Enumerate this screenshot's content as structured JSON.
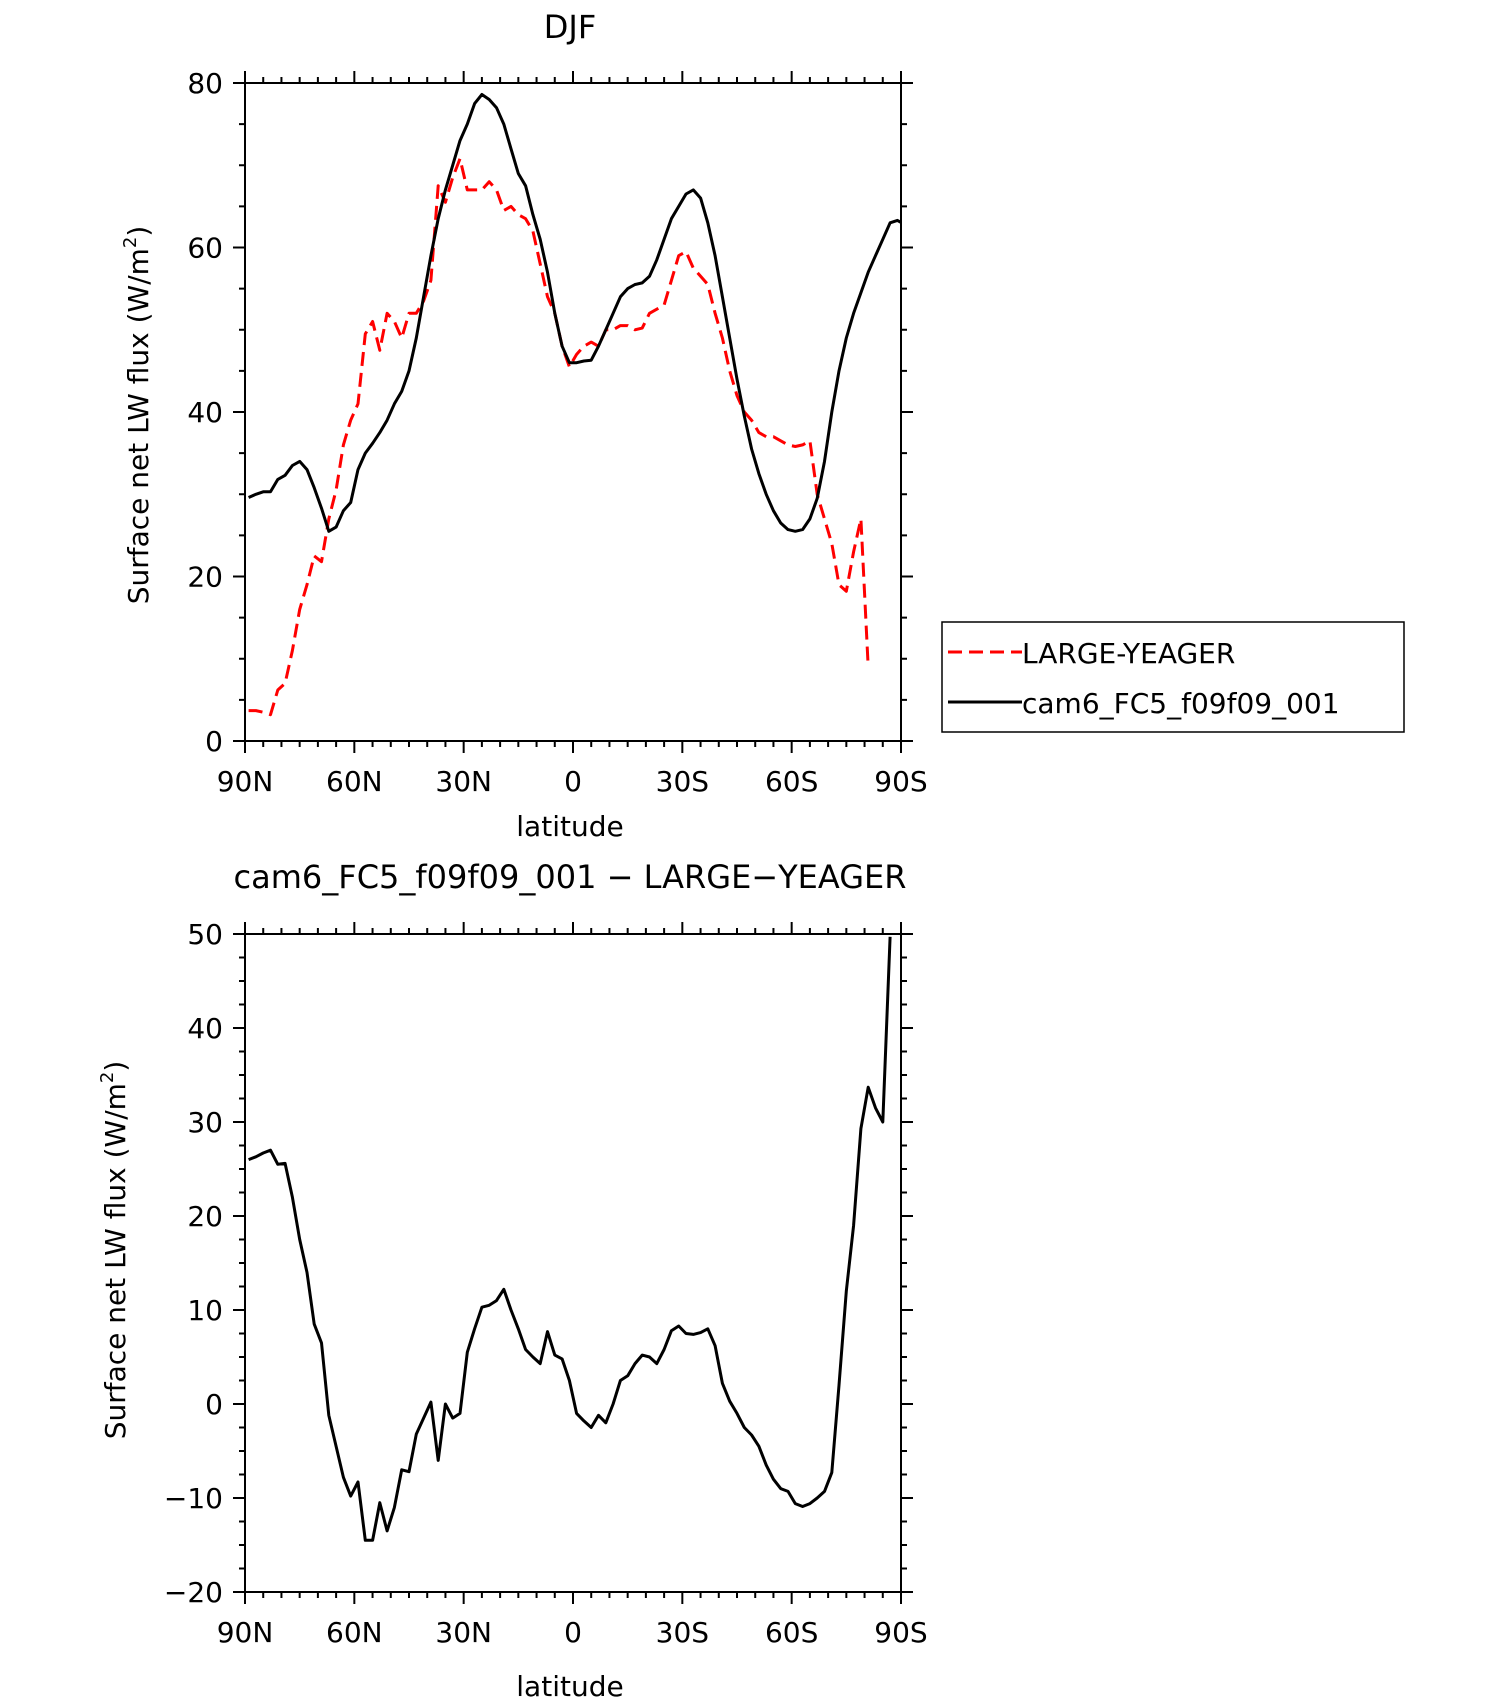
{
  "chart_data": [
    {
      "type": "line",
      "title": "DJF",
      "xlabel": "latitude",
      "ylabel": "Surface net LW flux (W/m²)",
      "ylabel_main": "Surface net LW flux (W/m",
      "ylabel_sup": "2",
      "ylabel_end": ")",
      "xlim": [
        90,
        -90
      ],
      "ylim": [
        0,
        80
      ],
      "xticks": [
        90,
        60,
        30,
        0,
        -30,
        -60,
        -90
      ],
      "xtick_labels": [
        "90N",
        "60N",
        "30N",
        "0",
        "30S",
        "60S",
        "90S"
      ],
      "yticks": [
        0,
        20,
        40,
        60,
        80
      ],
      "ytick_labels": [
        "0",
        "20",
        "40",
        "60",
        "80"
      ],
      "legend_position": "right",
      "series": [
        {
          "name": "LARGE-YEAGER",
          "color": "#ff0000",
          "dash": "dashed",
          "points": [
            [
              89,
              3.7
            ],
            [
              87,
              3.7
            ],
            [
              85,
              3.5
            ],
            [
              83,
              3.2
            ],
            [
              81,
              6.2
            ],
            [
              79,
              7
            ],
            [
              77,
              11
            ],
            [
              75,
              16
            ],
            [
              73,
              19
            ],
            [
              71,
              22.5
            ],
            [
              69,
              21.8
            ],
            [
              67,
              27
            ],
            [
              65,
              30.5
            ],
            [
              63,
              36
            ],
            [
              61,
              39
            ],
            [
              59,
              41
            ],
            [
              57,
              49.5
            ],
            [
              55,
              51
            ],
            [
              53,
              47.5
            ],
            [
              51,
              52
            ],
            [
              49,
              51
            ],
            [
              47,
              49
            ],
            [
              45,
              52
            ],
            [
              43,
              52
            ],
            [
              41,
              53.5
            ],
            [
              39,
              56
            ],
            [
              37,
              67.5
            ],
            [
              35,
              65.5
            ],
            [
              33,
              68.5
            ],
            [
              31,
              70.8
            ],
            [
              29,
              67
            ],
            [
              27,
              67
            ],
            [
              25,
              67
            ],
            [
              23,
              68
            ],
            [
              21,
              67
            ],
            [
              19,
              64.5
            ],
            [
              17,
              65
            ],
            [
              15,
              64
            ],
            [
              13,
              63.5
            ],
            [
              11,
              62
            ],
            [
              9,
              58
            ],
            [
              7,
              54
            ],
            [
              5,
              52
            ],
            [
              3,
              48
            ],
            [
              1,
              45.5
            ],
            [
              -1,
              47
            ],
            [
              -3,
              48
            ],
            [
              -5,
              48.5
            ],
            [
              -7,
              48
            ],
            [
              -9,
              50
            ],
            [
              -11,
              50
            ],
            [
              -13,
              50.5
            ],
            [
              -15,
              50.5
            ],
            [
              -17,
              50
            ],
            [
              -19,
              50.2
            ],
            [
              -21,
              52
            ],
            [
              -23,
              52.5
            ],
            [
              -25,
              53
            ],
            [
              -27,
              56
            ],
            [
              -29,
              59
            ],
            [
              -31,
              59.5
            ],
            [
              -33,
              57.5
            ],
            [
              -35,
              56.5
            ],
            [
              -37,
              55.5
            ],
            [
              -39,
              52
            ],
            [
              -41,
              49
            ],
            [
              -43,
              45
            ],
            [
              -45,
              42
            ],
            [
              -47,
              40
            ],
            [
              -49,
              39
            ],
            [
              -51,
              37.5
            ],
            [
              -53,
              37
            ],
            [
              -55,
              37
            ],
            [
              -57,
              36.5
            ],
            [
              -59,
              36
            ],
            [
              -61,
              35.8
            ],
            [
              -63,
              36
            ],
            [
              -65,
              36.5
            ],
            [
              -67,
              30
            ],
            [
              -69,
              27
            ],
            [
              -71,
              24
            ],
            [
              -73,
              19
            ],
            [
              -75,
              18.2
            ],
            [
              -77,
              23
            ],
            [
              -79,
              27
            ],
            [
              -81,
              9
            ]
          ]
        },
        {
          "name": "cam6_FC5_f09f09_001",
          "color": "#000000",
          "dash": "solid",
          "points": [
            [
              89,
              29.6
            ],
            [
              87,
              30
            ],
            [
              85,
              30.3
            ],
            [
              83,
              30.3
            ],
            [
              81,
              31.8
            ],
            [
              79,
              32.3
            ],
            [
              77,
              33.5
            ],
            [
              75,
              34
            ],
            [
              73,
              33
            ],
            [
              71,
              30.8
            ],
            [
              69,
              28.3
            ],
            [
              67,
              25.5
            ],
            [
              65,
              26
            ],
            [
              63,
              28
            ],
            [
              61,
              29
            ],
            [
              59,
              33
            ],
            [
              57,
              35
            ],
            [
              55,
              36.2
            ],
            [
              53,
              37.5
            ],
            [
              51,
              39
            ],
            [
              49,
              41
            ],
            [
              47,
              42.5
            ],
            [
              45,
              45
            ],
            [
              43,
              49
            ],
            [
              41,
              54
            ],
            [
              39,
              59
            ],
            [
              37,
              63.5
            ],
            [
              35,
              67
            ],
            [
              33,
              70
            ],
            [
              31,
              73
            ],
            [
              29,
              75
            ],
            [
              27,
              77.5
            ],
            [
              25,
              78.6
            ],
            [
              23,
              78
            ],
            [
              21,
              77
            ],
            [
              19,
              75
            ],
            [
              17,
              72
            ],
            [
              15,
              69
            ],
            [
              13,
              67.5
            ],
            [
              11,
              64
            ],
            [
              9,
              61
            ],
            [
              7,
              57
            ],
            [
              5,
              52
            ],
            [
              3,
              48
            ],
            [
              1,
              46
            ],
            [
              -1,
              46
            ],
            [
              -3,
              46.2
            ],
            [
              -5,
              46.3
            ],
            [
              -7,
              48
            ],
            [
              -9,
              50
            ],
            [
              -11,
              52
            ],
            [
              -13,
              54
            ],
            [
              -15,
              55
            ],
            [
              -17,
              55.5
            ],
            [
              -19,
              55.7
            ],
            [
              -21,
              56.5
            ],
            [
              -23,
              58.5
            ],
            [
              -25,
              61
            ],
            [
              -27,
              63.5
            ],
            [
              -29,
              65
            ],
            [
              -31,
              66.5
            ],
            [
              -33,
              67
            ],
            [
              -35,
              66
            ],
            [
              -37,
              63
            ],
            [
              -39,
              59
            ],
            [
              -41,
              54
            ],
            [
              -43,
              49
            ],
            [
              -45,
              44
            ],
            [
              -47,
              39.5
            ],
            [
              -49,
              35.5
            ],
            [
              -51,
              32.5
            ],
            [
              -53,
              30
            ],
            [
              -55,
              28
            ],
            [
              -57,
              26.5
            ],
            [
              -59,
              25.7
            ],
            [
              -61,
              25.5
            ],
            [
              -63,
              25.7
            ],
            [
              -65,
              27
            ],
            [
              -67,
              29.5
            ],
            [
              -69,
              34
            ],
            [
              -71,
              40
            ],
            [
              -73,
              45
            ],
            [
              -75,
              49
            ],
            [
              -77,
              52
            ],
            [
              -79,
              54.5
            ],
            [
              -81,
              57
            ],
            [
              -83,
              59
            ],
            [
              -85,
              61
            ],
            [
              -87,
              63
            ],
            [
              -89,
              63.3
            ],
            [
              -91,
              62.8
            ],
            [
              -92.5,
              60
            ]
          ]
        }
      ]
    },
    {
      "type": "line",
      "title": "cam6_FC5_f09f09_001 − LARGE−YEAGER",
      "xlabel": "latitude",
      "ylabel": "Surface net LW flux (W/m²)",
      "ylabel_main": "Surface net LW flux (W/m",
      "ylabel_sup": "2",
      "ylabel_end": ")",
      "xlim": [
        90,
        -90
      ],
      "ylim": [
        -20,
        50
      ],
      "xticks": [
        90,
        60,
        30,
        0,
        -30,
        -60,
        -90
      ],
      "xtick_labels": [
        "90N",
        "60N",
        "30N",
        "0",
        "30S",
        "60S",
        "90S"
      ],
      "yticks": [
        -20,
        -10,
        0,
        10,
        20,
        30,
        40,
        50
      ],
      "ytick_labels": [
        "−20",
        "−10",
        "0",
        "10",
        "20",
        "30",
        "40",
        "50"
      ],
      "series": [
        {
          "color": "#000000",
          "dash": "solid",
          "points": [
            [
              89,
              26
            ],
            [
              87,
              26.3
            ],
            [
              85,
              26.7
            ],
            [
              83,
              27
            ],
            [
              81,
              25.5
            ],
            [
              79,
              25.6
            ],
            [
              77,
              22
            ],
            [
              75,
              17.5
            ],
            [
              73,
              14
            ],
            [
              71,
              8.5
            ],
            [
              69,
              6.5
            ],
            [
              67,
              -1.2
            ],
            [
              65,
              -4.5
            ],
            [
              63,
              -7.8
            ],
            [
              61,
              -9.8
            ],
            [
              59,
              -8.3
            ],
            [
              57,
              -14.5
            ],
            [
              55,
              -14.5
            ],
            [
              53,
              -10.5
            ],
            [
              51,
              -13.5
            ],
            [
              49,
              -11
            ],
            [
              47,
              -7
            ],
            [
              45,
              -7.2
            ],
            [
              43,
              -3.2
            ],
            [
              41,
              -1.5
            ],
            [
              39,
              0.2
            ],
            [
              37,
              -6
            ],
            [
              35,
              0
            ],
            [
              33,
              -1.5
            ],
            [
              31,
              -1
            ],
            [
              29,
              5.5
            ],
            [
              27,
              8
            ],
            [
              25,
              10.3
            ],
            [
              23,
              10.5
            ],
            [
              21,
              11
            ],
            [
              19,
              12.2
            ],
            [
              17,
              10
            ],
            [
              15,
              8
            ],
            [
              13,
              5.8
            ],
            [
              11,
              5
            ],
            [
              9,
              4.3
            ],
            [
              7,
              7.7
            ],
            [
              5,
              5.2
            ],
            [
              3,
              4.8
            ],
            [
              1,
              2.5
            ],
            [
              -1,
              -1
            ],
            [
              -3,
              -1.8
            ],
            [
              -5,
              -2.5
            ],
            [
              -7,
              -1.2
            ],
            [
              -9,
              -2
            ],
            [
              -11,
              0
            ],
            [
              -13,
              2.5
            ],
            [
              -15,
              3
            ],
            [
              -17,
              4.3
            ],
            [
              -19,
              5.2
            ],
            [
              -21,
              5
            ],
            [
              -23,
              4.3
            ],
            [
              -25,
              5.8
            ],
            [
              -27,
              7.8
            ],
            [
              -29,
              8.3
            ],
            [
              -31,
              7.5
            ],
            [
              -33,
              7.4
            ],
            [
              -35,
              7.6
            ],
            [
              -37,
              8
            ],
            [
              -39,
              6.2
            ],
            [
              -41,
              2.2
            ],
            [
              -43,
              0.3
            ],
            [
              -45,
              -1
            ],
            [
              -47,
              -2.5
            ],
            [
              -49,
              -3.3
            ],
            [
              -51,
              -4.5
            ],
            [
              -53,
              -6.5
            ],
            [
              -55,
              -8
            ],
            [
              -57,
              -9
            ],
            [
              -59,
              -9.3
            ],
            [
              -61,
              -10.6
            ],
            [
              -63,
              -10.9
            ],
            [
              -65,
              -10.6
            ],
            [
              -67,
              -10
            ],
            [
              -69,
              -9.3
            ],
            [
              -71,
              -7.3
            ],
            [
              -73,
              2
            ],
            [
              -75,
              12
            ],
            [
              -77,
              19
            ],
            [
              -79,
              29.3
            ],
            [
              -81,
              33.7
            ],
            [
              -83,
              31.5
            ],
            [
              -85,
              30
            ],
            [
              -87,
              49.7
            ]
          ]
        }
      ]
    }
  ]
}
